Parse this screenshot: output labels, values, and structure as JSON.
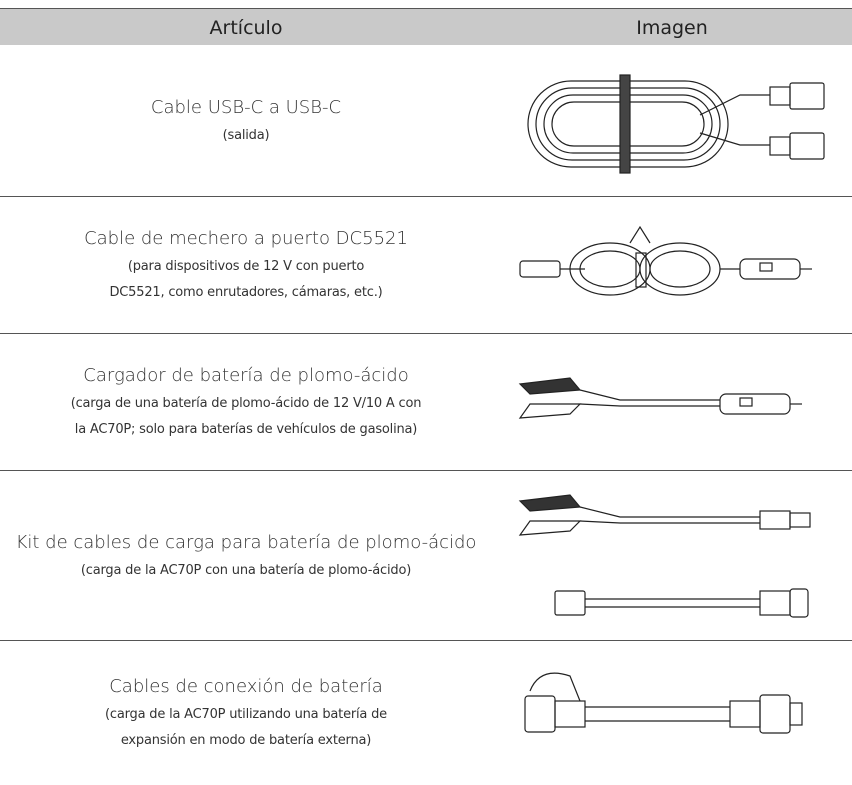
{
  "table": {
    "columns": [
      "Artículo",
      "Imagen"
    ],
    "rows": [
      {
        "title": "Cable USB-C a USB-C",
        "description": [
          "(salida)"
        ]
      },
      {
        "title": "Cable de mechero a puerto DC5521",
        "description": [
          "(para dispositivos de 12 V con puerto",
          "DC5521, como enrutadores, cámaras, etc.)"
        ]
      },
      {
        "title": "Cargador de batería de plomo-ácido",
        "description": [
          "(carga de una batería de plomo-ácido de 12 V/10 A con",
          "la AC70P; solo para baterías de vehículos de gasolina)"
        ]
      },
      {
        "title": "Kit de cables de carga para batería de plomo-ácido",
        "description": [
          "(carga de la AC70P con una batería de plomo-ácido)"
        ]
      },
      {
        "title": "Cables de conexión de batería",
        "description": [
          "(carga de la AC70P utilizando una batería de",
          "expansión en modo de batería externa)"
        ]
      }
    ]
  }
}
